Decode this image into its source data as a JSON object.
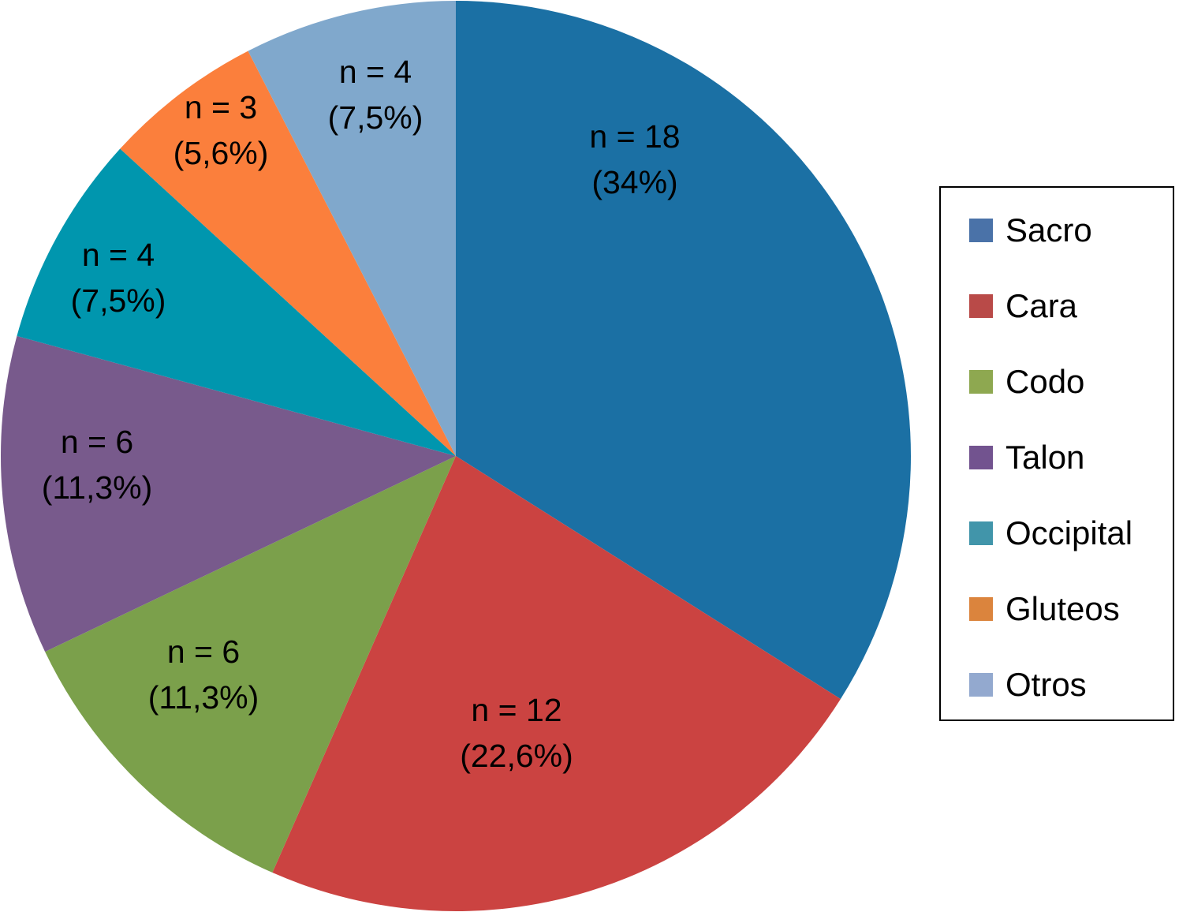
{
  "chart_data": {
    "type": "pie",
    "title": "",
    "start": "top",
    "direction": "clockwise",
    "legend_position": "right",
    "slices": [
      {
        "label": "Sacro",
        "n_label": "n = 18",
        "pct_label": "(34%)",
        "value": 18,
        "percent": 34,
        "color": "#1b70a4",
        "legend_color": "#4a72a8"
      },
      {
        "label": "Cara",
        "n_label": "n = 12",
        "pct_label": "(22,6%)",
        "value": 12,
        "percent": 22.6,
        "color": "#cb4341",
        "legend_color": "#b94a48"
      },
      {
        "label": "Codo",
        "n_label": "n = 6",
        "pct_label": "(11,3%)",
        "value": 6,
        "percent": 11.3,
        "color": "#7ba04b",
        "legend_color": "#8ea850"
      },
      {
        "label": "Talon",
        "n_label": "n = 6",
        "pct_label": "(11,3%)",
        "value": 6,
        "percent": 11.3,
        "color": "#785a8c",
        "legend_color": "#72538f"
      },
      {
        "label": "Occipital",
        "n_label": "n = 4",
        "pct_label": "(7,5%)",
        "value": 4,
        "percent": 7.5,
        "color": "#0096ae",
        "legend_color": "#4195aa"
      },
      {
        "label": "Gluteos",
        "n_label": "n = 3",
        "pct_label": "(5,6%)",
        "value": 3,
        "percent": 5.6,
        "color": "#fb7f3c",
        "legend_color": "#db843d"
      },
      {
        "label": "Otros",
        "n_label": "n = 4",
        "pct_label": "(7,5%)",
        "value": 4,
        "percent": 7.5,
        "color": "#80a8cc",
        "legend_color": "#93a9cf"
      }
    ]
  }
}
